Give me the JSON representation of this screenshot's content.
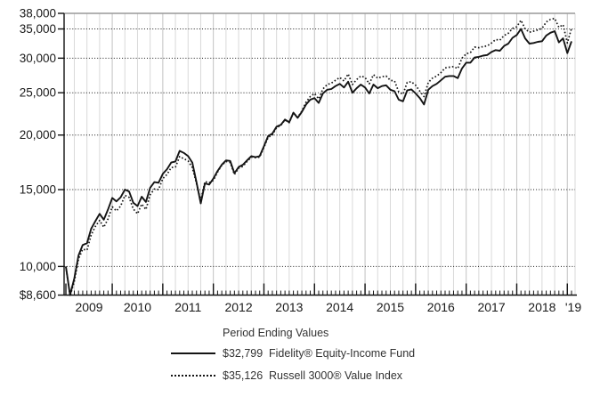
{
  "legend": {
    "title": "Period Ending Values",
    "items": [
      {
        "value": "$32,799",
        "label": "Fidelity® Equity-Income Fund",
        "style": "solid"
      },
      {
        "value": "$35,126",
        "label": "Russell 3000® Value Index",
        "style": "dotted"
      }
    ]
  },
  "chart_data": {
    "type": "line",
    "title": "",
    "y_scale": "log",
    "ylim": [
      8600,
      38000
    ],
    "sampling": "monthly",
    "x_range_labels": [
      "2009",
      "2010",
      "2011",
      "2012",
      "2013",
      "2014",
      "2015",
      "2016",
      "2017",
      "2018"
    ],
    "x_end_label": "'19",
    "y_ticks": [
      {
        "v": 38000,
        "label": "38,000",
        "gridline": false
      },
      {
        "v": 35000,
        "label": "35,000",
        "gridline": true
      },
      {
        "v": 30000,
        "label": "30,000",
        "gridline": true
      },
      {
        "v": 25000,
        "label": "25,000",
        "gridline": true
      },
      {
        "v": 20000,
        "label": "20,000",
        "gridline": true
      },
      {
        "v": 15000,
        "label": "15,000",
        "gridline": true
      },
      {
        "v": 10000,
        "label": "10,000",
        "gridline": true
      },
      {
        "v": 8600,
        "label": "$8,600",
        "gridline": false
      }
    ],
    "series": [
      {
        "name": "Fidelity® Equity-Income Fund",
        "style": "solid",
        "ending_value": 32799,
        "values": [
          10000,
          8600,
          9400,
          10600,
          11200,
          11300,
          12200,
          12700,
          13200,
          12800,
          13500,
          14350,
          14100,
          14400,
          15000,
          14850,
          14000,
          13750,
          14450,
          14050,
          15150,
          15600,
          15550,
          16300,
          16700,
          17300,
          17400,
          18400,
          18200,
          17900,
          17300,
          15600,
          13950,
          15500,
          15400,
          15900,
          16550,
          17100,
          17500,
          17450,
          16350,
          16900,
          17100,
          17500,
          17900,
          17800,
          17900,
          18850,
          19900,
          20150,
          20900,
          21100,
          21700,
          21400,
          22500,
          21900,
          22600,
          23500,
          24100,
          24300,
          23700,
          24900,
          25400,
          25500,
          25900,
          26200,
          25700,
          26500,
          25000,
          25600,
          26100,
          25700,
          24900,
          26100,
          25600,
          25900,
          26000,
          25400,
          25200,
          24100,
          23900,
          25300,
          25450,
          24900,
          24300,
          23500,
          25400,
          25900,
          26200,
          26700,
          27200,
          27300,
          27300,
          27000,
          28400,
          29300,
          29300,
          30100,
          30200,
          30400,
          30500,
          31000,
          31300,
          31200,
          32000,
          32400,
          33400,
          33900,
          35000,
          33300,
          32400,
          32500,
          32700,
          32800,
          33800,
          34300,
          34600,
          32600,
          33300,
          30800,
          32799
        ]
      },
      {
        "name": "Russell 3000® Value Index",
        "style": "dotted",
        "ending_value": 35126,
        "values": [
          10000,
          8550,
          9250,
          10400,
          10950,
          10900,
          11800,
          12350,
          12750,
          12300,
          12850,
          13700,
          13400,
          13750,
          14550,
          14400,
          13550,
          13200,
          13900,
          13500,
          14600,
          15050,
          15000,
          15900,
          16250,
          16850,
          16900,
          17850,
          17650,
          17450,
          16850,
          15500,
          14150,
          15650,
          15550,
          15750,
          16450,
          17050,
          17400,
          17300,
          16250,
          16800,
          16950,
          17400,
          17800,
          17750,
          17800,
          18750,
          19750,
          20000,
          20800,
          21050,
          21650,
          21350,
          22500,
          21950,
          22700,
          23800,
          24500,
          24900,
          24200,
          25500,
          26100,
          26300,
          26700,
          27100,
          26600,
          27600,
          26100,
          26800,
          27300,
          27100,
          26200,
          27500,
          27000,
          27200,
          27300,
          26700,
          26600,
          25100,
          24800,
          26400,
          26500,
          26000,
          25200,
          24500,
          26400,
          27000,
          27300,
          27800,
          28500,
          28600,
          28700,
          28400,
          30000,
          30700,
          30900,
          31800,
          31700,
          31900,
          32000,
          32500,
          33100,
          33000,
          33800,
          34200,
          35100,
          35400,
          36650,
          35000,
          34400,
          34600,
          34800,
          35100,
          36300,
          36800,
          37000,
          35300,
          35800,
          32500,
          35126
        ]
      }
    ],
    "colors": {
      "line": "#141414",
      "grid_minor": "#d9d9d9",
      "grid_year": "#c2c2c2",
      "grid_dotted": "#1a1a1a",
      "border": "#999999",
      "axis": "#111111"
    },
    "legend_position": "bottom"
  }
}
